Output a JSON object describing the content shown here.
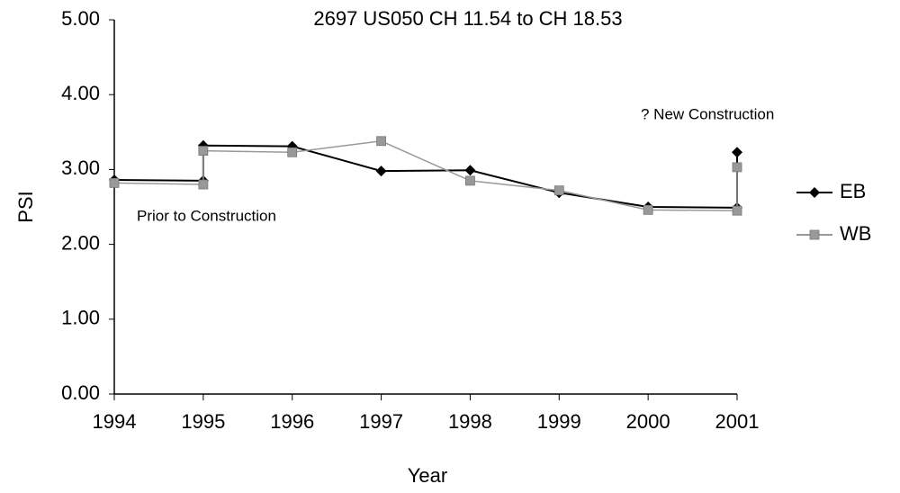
{
  "chart_data": {
    "type": "line",
    "title": "2697 US050 CH 11.54 to CH 18.53",
    "x_label": "Year",
    "y_label": "PSI",
    "x": [
      1994,
      1995,
      1995,
      1996,
      1997,
      1998,
      1999,
      2000,
      2001,
      2001
    ],
    "series": [
      {
        "name": "EB",
        "color": "#000000",
        "marker": "diamond",
        "values": [
          2.86,
          2.85,
          3.32,
          3.31,
          2.98,
          2.99,
          2.69,
          2.5,
          2.49,
          3.23
        ]
      },
      {
        "name": "WB",
        "color": "#999999",
        "marker": "square",
        "values": [
          2.82,
          2.8,
          3.25,
          3.23,
          3.38,
          2.85,
          2.72,
          2.46,
          2.45,
          3.03
        ]
      }
    ],
    "xlim": [
      1994,
      2001
    ],
    "xticks": [
      1994,
      1995,
      1996,
      1997,
      1998,
      1999,
      2000,
      2001
    ],
    "ylim": [
      0,
      5
    ],
    "yticks": [
      {
        "value": 0,
        "label": "0.00"
      },
      {
        "value": 1,
        "label": "1.00"
      },
      {
        "value": 2,
        "label": "2.00"
      },
      {
        "value": 3,
        "label": "3.00"
      },
      {
        "value": 4,
        "label": "4.00"
      },
      {
        "value": 5,
        "label": "5.00"
      }
    ],
    "annotations": [
      "Prior to Construction",
      "? New Construction"
    ],
    "grid": false,
    "legend": "right"
  }
}
